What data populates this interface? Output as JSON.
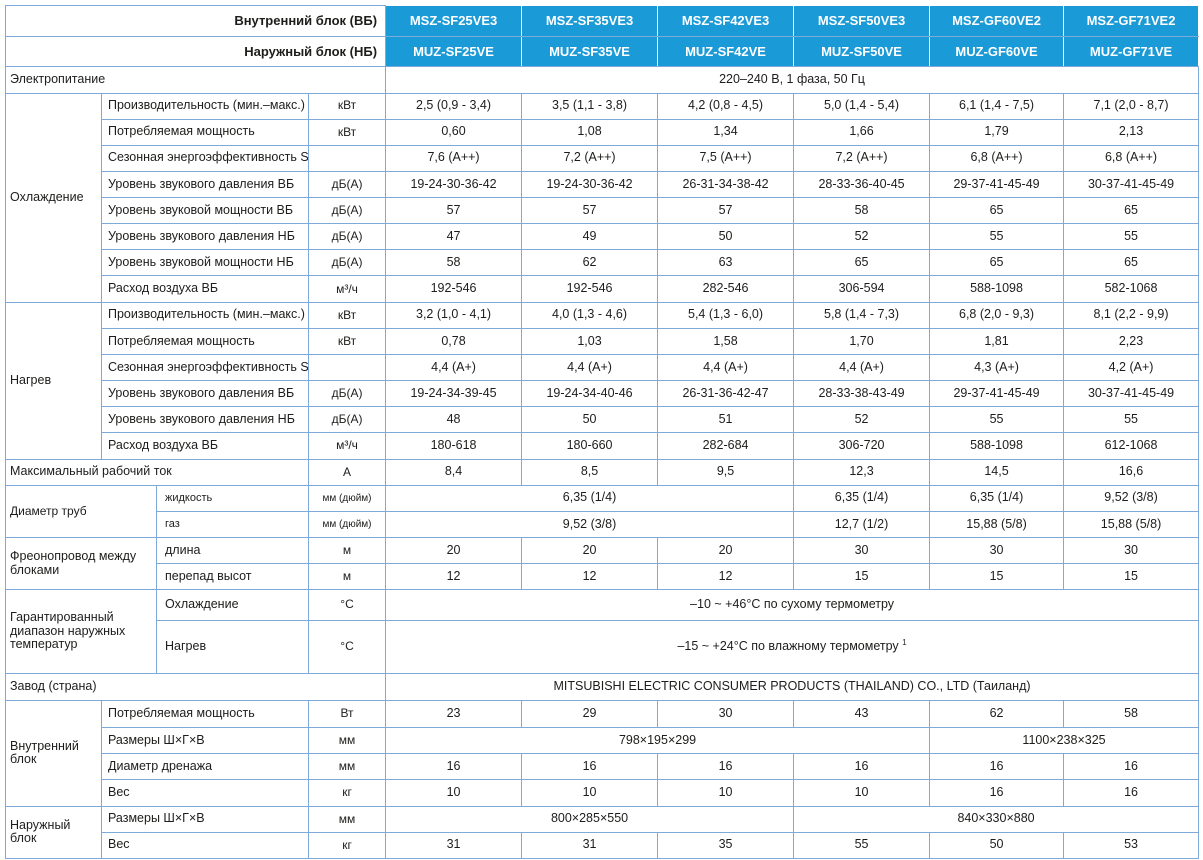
{
  "header": {
    "indoor_label": "Внутренний блок (ВБ)",
    "outdoor_label": "Наружный блок (НБ)",
    "indoor_models": [
      "MSZ-SF25VE3",
      "MSZ-SF35VE3",
      "MSZ-SF42VE3",
      "MSZ-SF50VE3",
      "MSZ-GF60VE2",
      "MSZ-GF71VE2"
    ],
    "outdoor_models": [
      "MUZ-SF25VE",
      "MUZ-SF35VE",
      "MUZ-SF42VE",
      "MUZ-SF50VE",
      "MUZ-GF60VE",
      "MUZ-GF71VE"
    ]
  },
  "power": {
    "label": "Электропитание",
    "value": "220–240 В, 1 фаза, 50 Гц"
  },
  "cooling": {
    "group": "Охлаждение",
    "rows": [
      {
        "param": "Производительность (мин.–макс.)",
        "unit": "кВт",
        "values": [
          "2,5 (0,9 - 3,4)",
          "3,5 (1,1 - 3,8)",
          "4,2 (0,8 - 4,5)",
          "5,0 (1,4 - 5,4)",
          "6,1 (1,4 - 7,5)",
          "7,1 (2,0 - 8,7)"
        ]
      },
      {
        "param": "Потребляемая мощность",
        "unit": "кВт",
        "values": [
          "0,60",
          "1,08",
          "1,34",
          "1,66",
          "1,79",
          "2,13"
        ]
      },
      {
        "param": "Сезонная энергоэффективность SEER",
        "unit": "",
        "values": [
          "7,6 (A++)",
          "7,2 (A++)",
          "7,5 (A++)",
          "7,2 (A++)",
          "6,8 (A++)",
          "6,8 (A++)"
        ]
      },
      {
        "param": "Уровень звукового давления ВБ",
        "unit": "дБ(А)",
        "values": [
          "19-24-30-36-42",
          "19-24-30-36-42",
          "26-31-34-38-42",
          "28-33-36-40-45",
          "29-37-41-45-49",
          "30-37-41-45-49"
        ]
      },
      {
        "param": "Уровень звуковой мощности ВБ",
        "unit": "дБ(А)",
        "values": [
          "57",
          "57",
          "57",
          "58",
          "65",
          "65"
        ]
      },
      {
        "param": "Уровень звукового давления НБ",
        "unit": "дБ(А)",
        "values": [
          "47",
          "49",
          "50",
          "52",
          "55",
          "55"
        ]
      },
      {
        "param": "Уровень звуковой мощности НБ",
        "unit": "дБ(А)",
        "values": [
          "58",
          "62",
          "63",
          "65",
          "65",
          "65"
        ]
      },
      {
        "param": "Расход воздуха ВБ",
        "unit": "м³/ч",
        "values": [
          "192-546",
          "192-546",
          "282-546",
          "306-594",
          "588-1098",
          "582-1068"
        ]
      }
    ]
  },
  "heating": {
    "group": "Нагрев",
    "rows": [
      {
        "param": "Производительность (мин.–макс.)",
        "unit": "кВт",
        "values": [
          "3,2 (1,0 - 4,1)",
          "4,0 (1,3 - 4,6)",
          "5,4 (1,3 - 6,0)",
          "5,8 (1,4 - 7,3)",
          "6,8 (2,0 - 9,3)",
          "8,1 (2,2 - 9,9)"
        ]
      },
      {
        "param": "Потребляемая мощность",
        "unit": "кВт",
        "values": [
          "0,78",
          "1,03",
          "1,58",
          "1,70",
          "1,81",
          "2,23"
        ]
      },
      {
        "param": "Сезонная энергоэффективность SCOP",
        "unit": "",
        "values": [
          "4,4 (A+)",
          "4,4 (A+)",
          "4,4 (A+)",
          "4,4 (A+)",
          "4,3 (A+)",
          "4,2 (A+)"
        ]
      },
      {
        "param": "Уровень звукового давления ВБ",
        "unit": "дБ(А)",
        "values": [
          "19-24-34-39-45",
          "19-24-34-40-46",
          "26-31-36-42-47",
          "28-33-38-43-49",
          "29-37-41-45-49",
          "30-37-41-45-49"
        ]
      },
      {
        "param": "Уровень звукового давления НБ",
        "unit": "дБ(А)",
        "values": [
          "48",
          "50",
          "51",
          "52",
          "55",
          "55"
        ]
      },
      {
        "param": "Расход воздуха ВБ",
        "unit": "м³/ч",
        "values": [
          "180-618",
          "180-660",
          "282-684",
          "306-720",
          "588-1098",
          "612-1068"
        ]
      }
    ]
  },
  "max_current": {
    "label": "Максимальный рабочий ток",
    "unit": "А",
    "values": [
      "8,4",
      "8,5",
      "9,5",
      "12,3",
      "14,5",
      "16,6"
    ]
  },
  "pipes": {
    "label": "Диаметр труб",
    "liquid": {
      "label": "жидкость",
      "unit": "мм (дюйм)",
      "span_value": "6,35 (1/4)",
      "values": [
        "6,35 (1/4)",
        "6,35 (1/4)",
        "9,52 (3/8)"
      ]
    },
    "gas": {
      "label": "газ",
      "unit": "мм (дюйм)",
      "span_value": "9,52 (3/8)",
      "values": [
        "12,7 (1/2)",
        "15,88 (5/8)",
        "15,88 (5/8)"
      ]
    }
  },
  "refrigerant_line": {
    "label": "Фреонопровод между блоками",
    "length": {
      "label": "длина",
      "unit": "м",
      "values": [
        "20",
        "20",
        "20",
        "30",
        "30",
        "30"
      ]
    },
    "height": {
      "label": "перепад высот",
      "unit": "м",
      "values": [
        "12",
        "12",
        "12",
        "15",
        "15",
        "15"
      ]
    }
  },
  "temp_range": {
    "label": "Гарантированный диапазон наружных температур",
    "cooling": {
      "label": "Охлаждение",
      "unit": "°С",
      "value": "–10 ~ +46°С по сухому термометру"
    },
    "heating": {
      "label": "Нагрев",
      "unit": "°С",
      "value": "–15 ~ +24°С по влажному термометру",
      "footnote": "1"
    }
  },
  "factory": {
    "label": "Завод (страна)",
    "value": "MITSUBISHI ELECTRIC CONSUMER PRODUCTS (THAILAND) CO., LTD (Таиланд)"
  },
  "indoor_unit": {
    "label": "Внутренний блок",
    "power": {
      "label": "Потребляемая мощность",
      "unit": "Вт",
      "values": [
        "23",
        "29",
        "30",
        "43",
        "62",
        "58"
      ]
    },
    "dims": {
      "label": "Размеры Ш×Г×В",
      "unit": "мм",
      "values": [
        "798×195×299",
        "1100×238×325"
      ]
    },
    "drain": {
      "label": "Диаметр дренажа",
      "unit": "мм",
      "values": [
        "16",
        "16",
        "16",
        "16",
        "16",
        "16"
      ]
    },
    "weight": {
      "label": "Вес",
      "unit": "кг",
      "values": [
        "10",
        "10",
        "10",
        "10",
        "16",
        "16"
      ]
    }
  },
  "outdoor_unit": {
    "label": "Наружный блок",
    "dims": {
      "label": "Размеры Ш×Г×В",
      "unit": "мм",
      "values": [
        "800×285×550",
        "840×330×880"
      ]
    },
    "weight": {
      "label": "Вес",
      "unit": "кг",
      "values": [
        "31",
        "31",
        "35",
        "55",
        "50",
        "53"
      ]
    }
  }
}
